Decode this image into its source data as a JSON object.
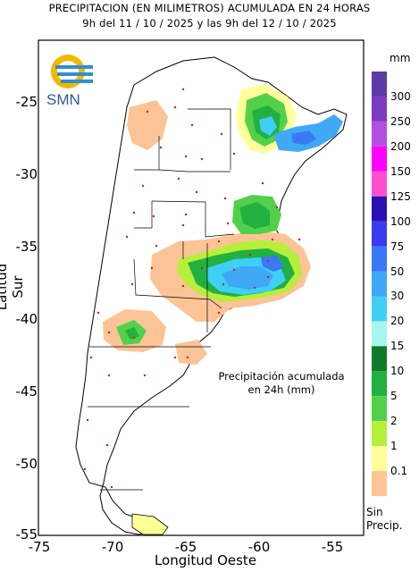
{
  "title": {
    "line1": "PRECIPITACION (EN MILIMETROS) ACUMULADA EN 24 HORAS",
    "line2": "9h del 11 / 10 / 2025  y las 9h del 12 / 10 / 2025"
  },
  "logo": {
    "text": "SMN",
    "colors": [
      "#f5b700",
      "#2d8fd4"
    ]
  },
  "axes": {
    "xlabel": "Longitud Oeste",
    "ylabel": "Latitud Sur",
    "xticks": [
      "-75",
      "-70",
      "-65",
      "-60",
      "-55"
    ],
    "yticks": [
      "-25",
      "-30",
      "-35",
      "-40",
      "-45",
      "-50",
      "-55"
    ]
  },
  "annotation": {
    "line1": "Precipitación acumulada",
    "line2": "en 24h (mm)"
  },
  "legend": {
    "unit": "mm",
    "no_precip": [
      "Sin",
      "Precip."
    ],
    "classes": [
      {
        "label": "300",
        "color": "#5b3ba8"
      },
      {
        "label": "250",
        "color": "#7d3bc4"
      },
      {
        "label": "200",
        "color": "#b34fe0"
      },
      {
        "label": "150",
        "color": "#ff00ff"
      },
      {
        "label": "125",
        "color": "#ff4fd0"
      },
      {
        "label": "100",
        "color": "#2a0fb5"
      },
      {
        "label": "75",
        "color": "#3a3af0"
      },
      {
        "label": "50",
        "color": "#3a78f5"
      },
      {
        "label": "30",
        "color": "#3fa8f7"
      },
      {
        "label": "20",
        "color": "#3fd0f7"
      },
      {
        "label": "15",
        "color": "#a8f5ef"
      },
      {
        "label": "10",
        "color": "#0f7a2a"
      },
      {
        "label": "5",
        "color": "#22b040"
      },
      {
        "label": "2",
        "color": "#53d04a"
      },
      {
        "label": "1",
        "color": "#b5ef3a"
      },
      {
        "label": "0.1",
        "color": "#ffff9a"
      },
      {
        "label": "",
        "color": "#fcc496"
      }
    ]
  }
}
